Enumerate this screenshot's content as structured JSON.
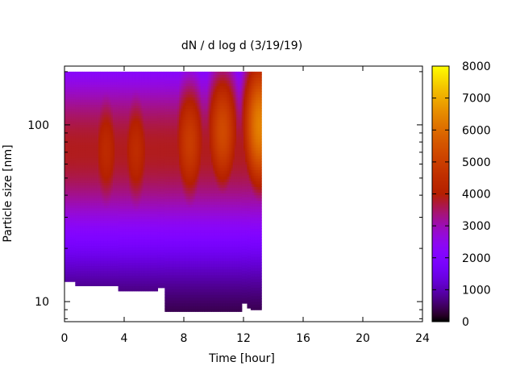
{
  "chart_data": {
    "type": "heatmap",
    "title": "dN / d log d (3/19/19)",
    "xlabel": "Time [hour]",
    "ylabel": "Particle size [nm]",
    "xlim": [
      0,
      24
    ],
    "ylim": [
      7.7,
      215
    ],
    "yscale": "log",
    "grid": false,
    "x_ticks": [
      {
        "value": 0,
        "label": "0"
      },
      {
        "value": 4,
        "label": "4"
      },
      {
        "value": 8,
        "label": "8"
      },
      {
        "value": 12,
        "label": "12"
      },
      {
        "value": 16,
        "label": "16"
      },
      {
        "value": 20,
        "label": "20"
      },
      {
        "value": 24,
        "label": "24"
      }
    ],
    "y_ticks": [
      {
        "value": 10,
        "label": "10"
      },
      {
        "value": 100,
        "label": "100"
      }
    ],
    "colorbar": {
      "min": 0,
      "max": 8000,
      "ticks": [
        {
          "value": 0,
          "label": "0"
        },
        {
          "value": 1000,
          "label": "1000"
        },
        {
          "value": 2000,
          "label": "2000"
        },
        {
          "value": 3000,
          "label": "3000"
        },
        {
          "value": 4000,
          "label": "4000"
        },
        {
          "value": 5000,
          "label": "5000"
        },
        {
          "value": 6000,
          "label": "6000"
        },
        {
          "value": 7000,
          "label": "7000"
        },
        {
          "value": 8000,
          "label": "8000"
        }
      ],
      "colormap": "gnuplot-pm3d-hot"
    },
    "data_extent": {
      "x_end": 13.2,
      "y_top": 200
    },
    "lower_size_limit": [
      {
        "x0": 0,
        "x1": 0.7,
        "d_min": 13.0
      },
      {
        "x0": 0.7,
        "x1": 3.6,
        "d_min": 12.3
      },
      {
        "x0": 3.6,
        "x1": 6.2,
        "d_min": 11.5
      },
      {
        "x0": 6.2,
        "x1": 6.7,
        "d_min": 12.0
      },
      {
        "x0": 6.7,
        "x1": 11.9,
        "d_min": 8.8
      },
      {
        "x0": 11.9,
        "x1": 12.3,
        "d_min": 9.8
      },
      {
        "x0": 12.3,
        "x1": 12.5,
        "d_min": 9.2
      },
      {
        "x0": 12.5,
        "x1": 13.2,
        "d_min": 9.0
      }
    ],
    "size_distribution_modes": [
      {
        "x": 2.8,
        "d": 72,
        "peak": 4400
      },
      {
        "x": 4.8,
        "d": 72,
        "peak": 4450
      },
      {
        "x": 8.4,
        "d": 80,
        "peak": 4950
      },
      {
        "x": 10.6,
        "d": 92,
        "peak": 5300
      },
      {
        "x": 13.1,
        "d": 100,
        "peak": 6400
      }
    ]
  }
}
